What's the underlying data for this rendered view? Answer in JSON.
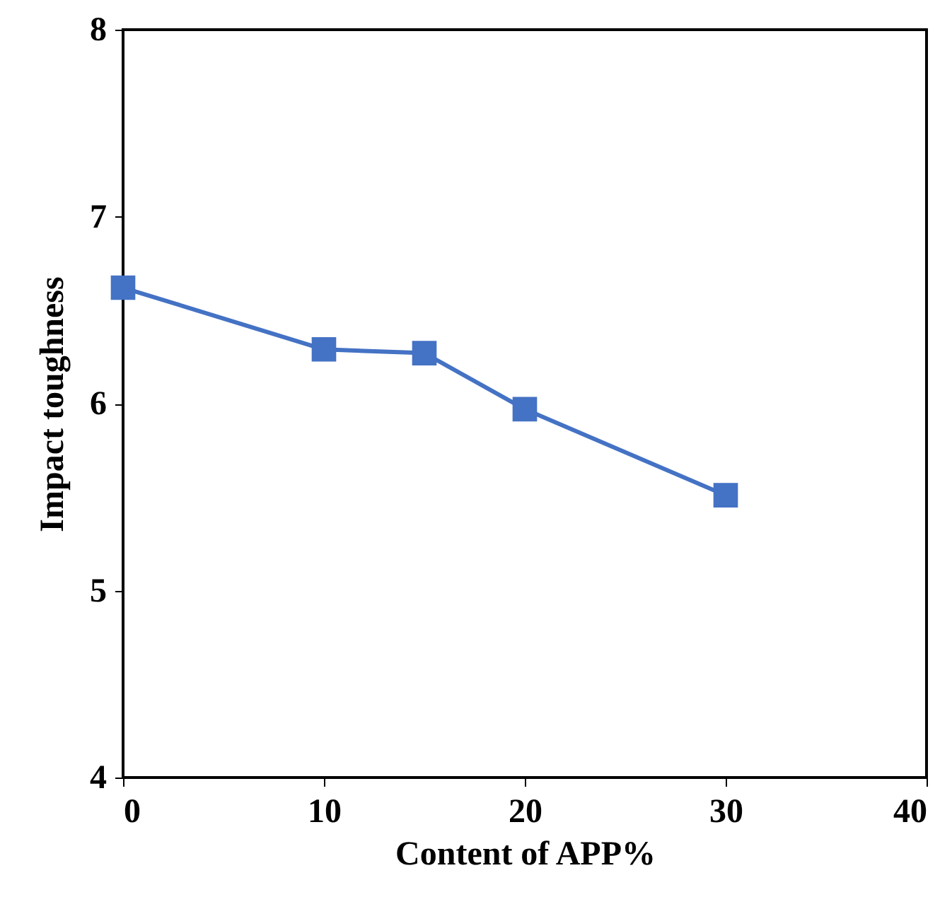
{
  "chart_data": {
    "type": "line",
    "xlabel": "Content of APP%",
    "ylabel": "Impact toughness",
    "x": [
      0,
      10,
      15,
      20,
      30
    ],
    "series": [
      {
        "color": "#4472c4",
        "values": [
          6.62,
          6.29,
          6.27,
          5.97,
          5.51
        ]
      }
    ],
    "xlim": [
      0,
      40
    ],
    "xticks": [
      0,
      10,
      20,
      30,
      40
    ],
    "ylim": [
      4,
      8
    ],
    "yticks": [
      4,
      5,
      6,
      7,
      8
    ],
    "marker": "square",
    "line_style": "solid"
  }
}
